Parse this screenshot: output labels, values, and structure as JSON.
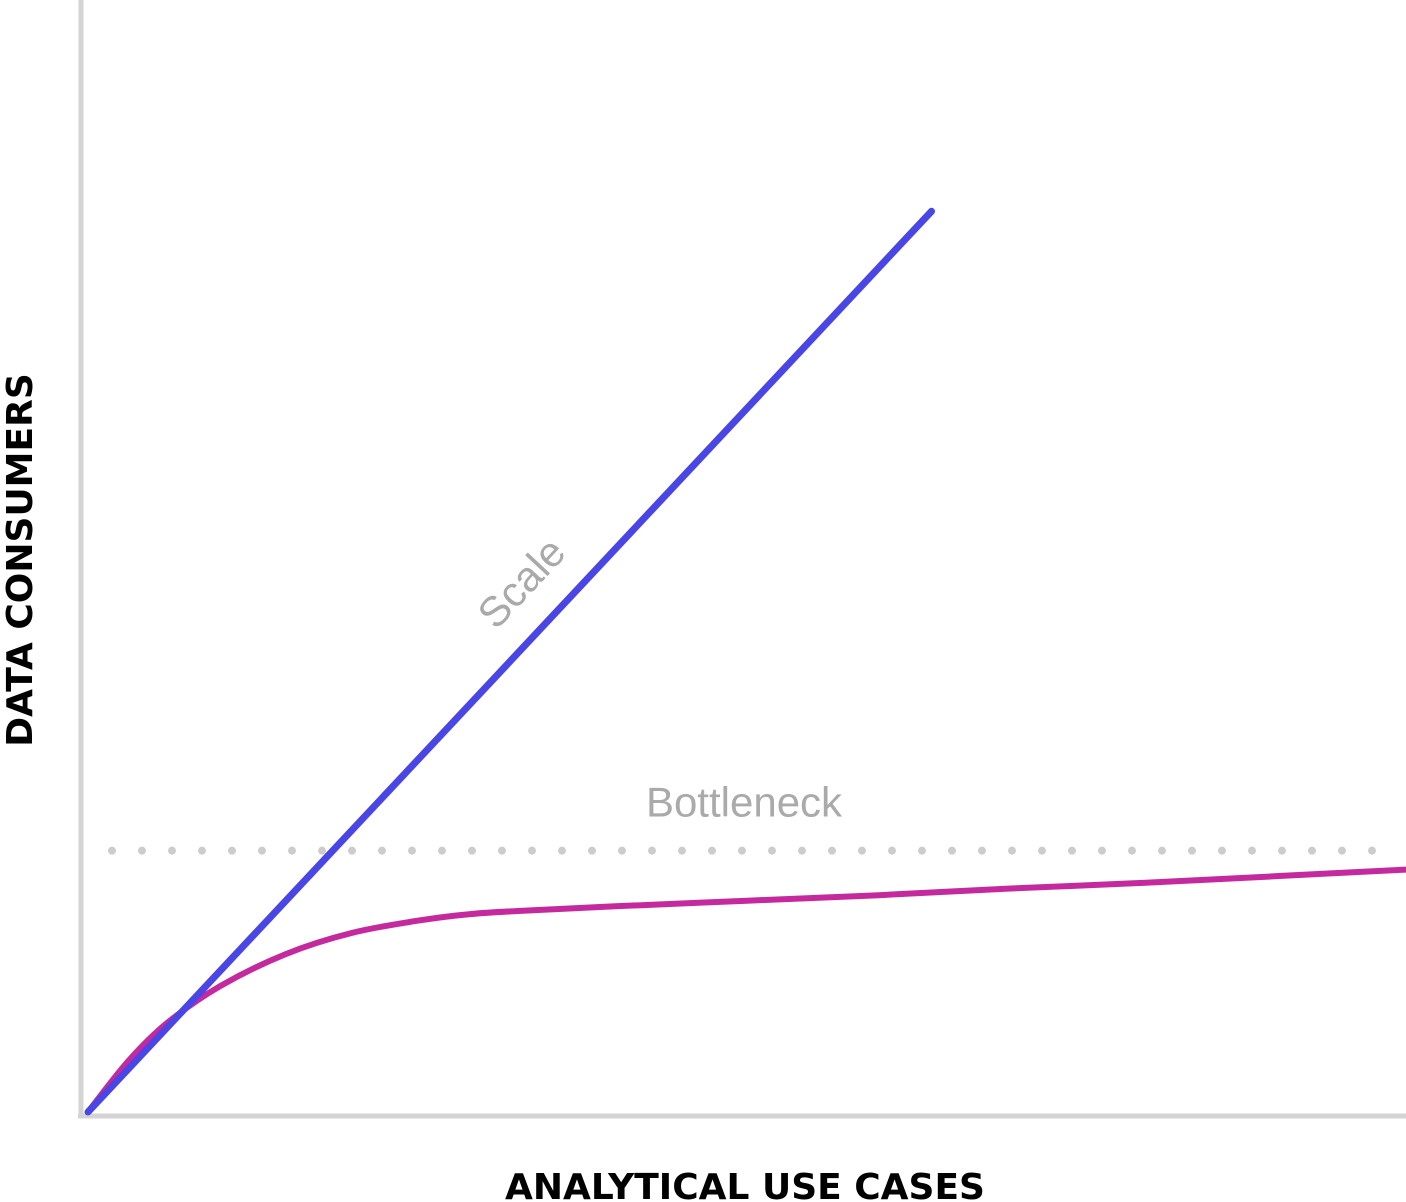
{
  "chart_data": {
    "type": "line",
    "title": "",
    "xlabel": "ANALYTICAL USE CASES",
    "ylabel": "DATA CONSUMERS",
    "xlim": [
      0,
      100
    ],
    "ylim": [
      0,
      100
    ],
    "grid": false,
    "legend": "none",
    "series": [
      {
        "name": "Scale",
        "color": "#4a46e6",
        "x": [
          0,
          64
        ],
        "y": [
          0,
          81
        ]
      },
      {
        "name": "",
        "color": "#c42a9e",
        "x": [
          0,
          3,
          6,
          10,
          15,
          20,
          25,
          29,
          33,
          40,
          50,
          60,
          70,
          80,
          90,
          100
        ],
        "y": [
          0,
          4.5,
          8,
          11.3,
          14.2,
          16.1,
          17.2,
          17.8,
          18.1,
          18.5,
          19.0,
          19.5,
          20.1,
          20.6,
          21.2,
          21.8
        ]
      }
    ],
    "reference_lines": [
      {
        "label": "Bottleneck",
        "y": 23.5,
        "style": "dotted",
        "color": "#cccccc"
      }
    ],
    "axis_color": "#d4d4d4"
  }
}
